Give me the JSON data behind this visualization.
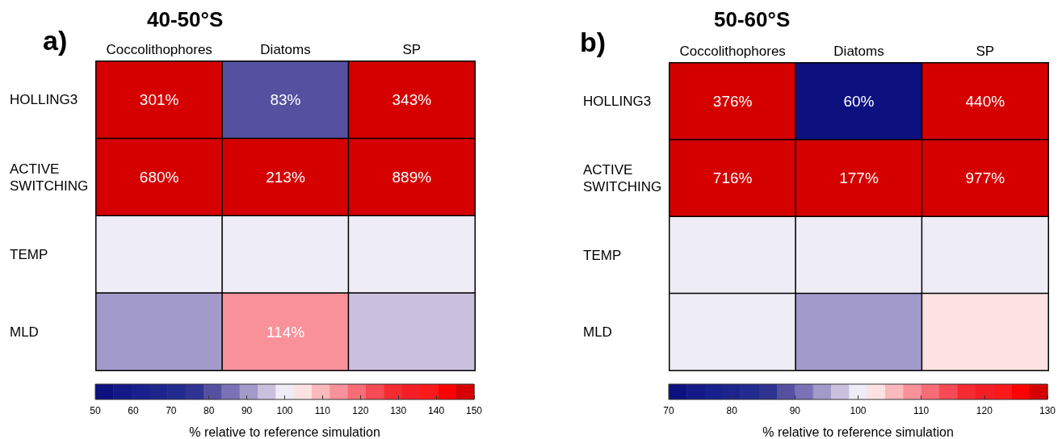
{
  "chart_data": [
    {
      "type": "heatmap",
      "title": "40-50°S",
      "annotations": [
        "a)"
      ],
      "categories": [
        "Coccolithophores",
        "Diatoms",
        "SP"
      ],
      "y_categories": [
        "HOLLING3",
        "ACTIVE SWITCHING",
        "TEMP",
        "MLD"
      ],
      "cells": [
        [
          301,
          83,
          343
        ],
        [
          680,
          213,
          889
        ],
        [
          100,
          100,
          100
        ],
        [
          90,
          114,
          95
        ]
      ],
      "cell_labels": [
        [
          "301%",
          "83%",
          "343%"
        ],
        [
          "680%",
          "213%",
          "889%"
        ],
        [
          null,
          null,
          null
        ],
        [
          null,
          "114%",
          null
        ]
      ],
      "clim": [
        50,
        150
      ],
      "cticks": [
        50,
        60,
        70,
        80,
        90,
        100,
        110,
        120,
        130,
        140,
        150
      ],
      "clabel": "% relative to reference simulation",
      "colors": [
        "#0d1180",
        "#131a87",
        "#18208b",
        "#1d258d",
        "#222b8f",
        "#2f3492",
        "#5550a0",
        "#7a72b6",
        "#a29ac9",
        "#cac0de",
        "#eeecf5",
        "#fde2e3",
        "#fbb9bd",
        "#f8919a",
        "#f86c76",
        "#f64a54",
        "#f52b33",
        "#f41f26",
        "#fa1a1c",
        "#ff0000",
        "#d50000"
      ]
    },
    {
      "type": "heatmap",
      "title": "50-60°S",
      "annotations": [
        "b)"
      ],
      "categories": [
        "Coccolithophores",
        "Diatoms",
        "SP"
      ],
      "y_categories": [
        "HOLLING3",
        "ACTIVE SWITCHING",
        "TEMP",
        "MLD"
      ],
      "cells": [
        [
          376,
          60,
          440
        ],
        [
          716,
          177,
          977
        ],
        [
          100,
          100,
          100
        ],
        [
          100,
          94,
          103
        ]
      ],
      "cell_labels": [
        [
          "376%",
          "60%",
          "440%"
        ],
        [
          "716%",
          "177%",
          "977%"
        ],
        [
          null,
          null,
          null
        ],
        [
          null,
          null,
          null
        ]
      ],
      "clim": [
        70,
        130
      ],
      "cticks": [
        70,
        80,
        90,
        100,
        110,
        120,
        130
      ],
      "clabel": "% relative to reference simulation",
      "colors": [
        "#0d1180",
        "#131a87",
        "#18208b",
        "#1d258d",
        "#222b8f",
        "#2f3492",
        "#5550a0",
        "#7a72b6",
        "#a29ac9",
        "#cac0de",
        "#eeecf5",
        "#fde2e3",
        "#fbb9bd",
        "#f8919a",
        "#f86c76",
        "#f64a54",
        "#f52b33",
        "#f41f26",
        "#fa1a1c",
        "#ff0000",
        "#d50000"
      ]
    }
  ]
}
